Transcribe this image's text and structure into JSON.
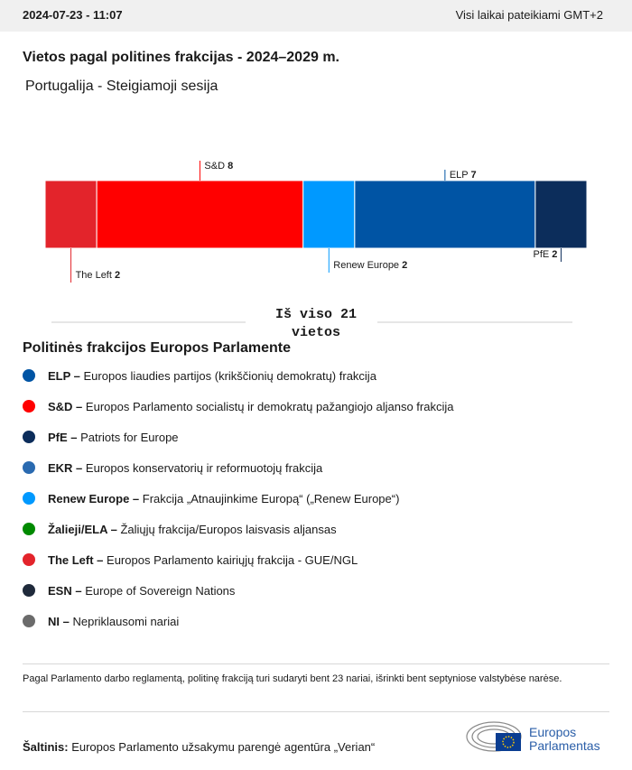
{
  "header": {
    "datetime": "2024-07-23 - 11:07",
    "timezone": "Visi laikai pateikiami GMT+2"
  },
  "chart_data": {
    "type": "stacked-bar",
    "title": "Vietos pagal politines frakcijas - 2024–2029 m.",
    "subtitle": "Portugalija - Steigiamoji sesija",
    "series": [
      {
        "name": "The Left",
        "color": "#e3242b",
        "values": [
          2
        ]
      },
      {
        "name": "S&D",
        "color": "#ff0000",
        "values": [
          8
        ]
      },
      {
        "name": "Renew Europe",
        "color": "#0099ff",
        "values": [
          2
        ]
      },
      {
        "name": "ELP",
        "color": "#0054a4",
        "values": [
          7
        ]
      },
      {
        "name": "PfE",
        "color": "#0c2d5b",
        "values": [
          2
        ]
      }
    ],
    "total": {
      "prefix": "Iš viso",
      "value": 21,
      "suffix": "vietos"
    }
  },
  "legend": {
    "title": "Politinės frakcijos Europos Parlamente",
    "items": [
      {
        "abbr": "ELP –",
        "text": "Europos liaudies partijos (krikščionių demokratų) frakcija",
        "color": "#0054a4"
      },
      {
        "abbr": "S&D –",
        "text": "Europos Parlamento socialistų ir demokratų pažangiojo aljanso frakcija",
        "color": "#ff0000"
      },
      {
        "abbr": "PfE –",
        "text": "Patriots for Europe",
        "color": "#0c2d5b"
      },
      {
        "abbr": "EKR –",
        "text": "Europos konservatorių ir reformuotojų frakcija",
        "color": "#2a6ab0"
      },
      {
        "abbr": "Renew Europe –",
        "text": "Frakcija „Atnaujinkime Europą“ („Renew Europe“)",
        "color": "#0099ff"
      },
      {
        "abbr": "Žalieji/ELA –",
        "text": "Žaliųjų frakcija/Europos laisvasis aljansas",
        "color": "#008a00"
      },
      {
        "abbr": "The Left –",
        "text": "Europos Parlamento kairiųjų frakcija - GUE/NGL",
        "color": "#e3242b"
      },
      {
        "abbr": "ESN –",
        "text": "Europe of Sovereign Nations",
        "color": "#1f2a3b"
      },
      {
        "abbr": "NI –",
        "text": "Nepriklausomi nariai",
        "color": "#6b6b6b"
      }
    ]
  },
  "footnote": "Pagal Parlamento darbo reglamentą, politinę frakciją turi sudaryti bent 23 nariai, išrinkti bent septyniose valstybėse narėse.",
  "source": {
    "label": "Šaltinis:",
    "text": "Europos Parlamento užsakymu parengė agentūra „Verian“"
  },
  "logo": {
    "line1": "Europos",
    "line2": "Parlamentas"
  }
}
